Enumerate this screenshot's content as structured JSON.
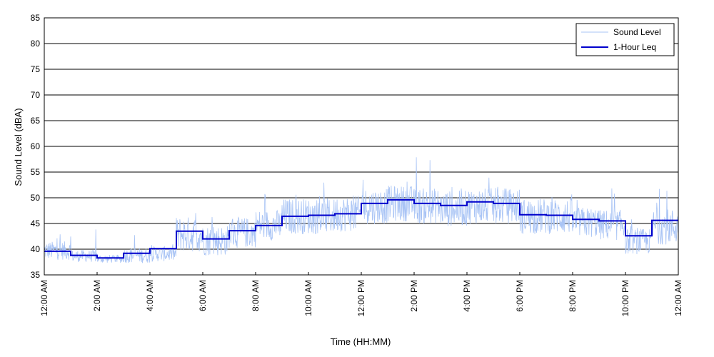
{
  "chart_data": {
    "type": "line",
    "xlabel": "Time (HH:MM)",
    "ylabel": "Sound Level (dBA)",
    "xlim": [
      0,
      24
    ],
    "ylim": [
      35,
      85
    ],
    "y_ticks": [
      35,
      40,
      45,
      50,
      55,
      60,
      65,
      70,
      75,
      80,
      85
    ],
    "x_ticks": [
      0,
      2,
      4,
      6,
      8,
      10,
      12,
      14,
      16,
      18,
      20,
      22,
      24
    ],
    "x_tick_labels": [
      "12:00 AM",
      "2:00 AM",
      "4:00 AM",
      "6:00 AM",
      "8:00 AM",
      "10:00 AM",
      "12:00 PM",
      "2:00 PM",
      "4:00 PM",
      "6:00 PM",
      "8:00 PM",
      "10:00 PM",
      "12:00 AM"
    ],
    "grid": "horizontal",
    "legend_position": "top-right",
    "series": [
      {
        "name": "Sound Level",
        "color": "#a9c4f5",
        "style": "thin-line",
        "hourly_profile": [
          {
            "hour": 0,
            "base": 39.0,
            "spread": 1.8,
            "peak": 44
          },
          {
            "hour": 1,
            "base": 38.2,
            "spread": 1.2,
            "peak": 45
          },
          {
            "hour": 2,
            "base": 37.8,
            "spread": 0.8,
            "peak": 39
          },
          {
            "hour": 3,
            "base": 38.2,
            "spread": 1.5,
            "peak": 44
          },
          {
            "hour": 4,
            "base": 38.5,
            "spread": 1.5,
            "peak": 41
          },
          {
            "hour": 5,
            "base": 41.5,
            "spread": 3.5,
            "peak": 49
          },
          {
            "hour": 6,
            "base": 40.5,
            "spread": 3.0,
            "peak": 48
          },
          {
            "hour": 7,
            "base": 42.0,
            "spread": 3.0,
            "peak": 49
          },
          {
            "hour": 8,
            "base": 43.5,
            "spread": 3.0,
            "peak": 51
          },
          {
            "hour": 9,
            "base": 45.0,
            "spread": 3.5,
            "peak": 54
          },
          {
            "hour": 10,
            "base": 45.0,
            "spread": 3.5,
            "peak": 54
          },
          {
            "hour": 11,
            "base": 45.5,
            "spread": 3.5,
            "peak": 53
          },
          {
            "hour": 12,
            "base": 47.0,
            "spread": 3.5,
            "peak": 58
          },
          {
            "hour": 13,
            "base": 47.5,
            "spread": 3.5,
            "peak": 55
          },
          {
            "hour": 14,
            "base": 47.0,
            "spread": 3.5,
            "peak": 60
          },
          {
            "hour": 15,
            "base": 46.5,
            "spread": 3.5,
            "peak": 53
          },
          {
            "hour": 16,
            "base": 47.0,
            "spread": 3.5,
            "peak": 54
          },
          {
            "hour": 17,
            "base": 47.0,
            "spread": 3.5,
            "peak": 54
          },
          {
            "hour": 18,
            "base": 45.0,
            "spread": 3.5,
            "peak": 51
          },
          {
            "hour": 19,
            "base": 45.0,
            "spread": 3.5,
            "peak": 51
          },
          {
            "hour": 20,
            "base": 44.0,
            "spread": 3.0,
            "peak": 50
          },
          {
            "hour": 21,
            "base": 43.5,
            "spread": 3.0,
            "peak": 52
          },
          {
            "hour": 22,
            "base": 40.5,
            "spread": 2.5,
            "peak": 47
          },
          {
            "hour": 23,
            "base": 43.0,
            "spread": 3.5,
            "peak": 54
          }
        ]
      },
      {
        "name": "1-Hour Leq",
        "color": "#0000cc",
        "style": "step",
        "x": [
          0,
          1,
          2,
          3,
          4,
          5,
          6,
          7,
          8,
          9,
          10,
          11,
          12,
          13,
          14,
          15,
          16,
          17,
          18,
          19,
          20,
          21,
          22,
          23
        ],
        "values": [
          39.6,
          38.8,
          38.3,
          39.2,
          40.1,
          43.5,
          42.0,
          43.6,
          44.6,
          46.4,
          46.6,
          46.9,
          48.9,
          49.6,
          48.9,
          48.5,
          49.2,
          48.9,
          46.7,
          46.6,
          45.8,
          45.5,
          42.6,
          45.6
        ]
      }
    ]
  }
}
